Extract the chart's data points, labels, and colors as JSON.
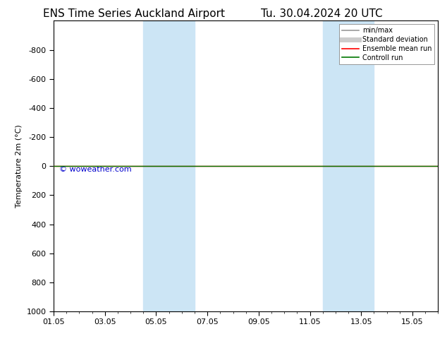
{
  "title": "ENS Time Series Auckland Airport",
  "title_right": "Tu. 30.04.2024 20 UTC",
  "ylabel": "Temperature 2m (°C)",
  "watermark": "© woweather.com",
  "watermark_color": "#0000cc",
  "bg_color": "#ffffff",
  "plot_bg_color": "#ffffff",
  "ylim_bottom": 1000,
  "ylim_top": -1000,
  "yticks": [
    -800,
    -600,
    -400,
    -200,
    0,
    200,
    400,
    600,
    800,
    1000
  ],
  "xlim_start": 0.0,
  "xlim_end": 15.0,
  "xtick_labels": [
    "01.05",
    "03.05",
    "05.05",
    "07.05",
    "09.05",
    "11.05",
    "13.05",
    "15.05"
  ],
  "xtick_positions": [
    0,
    2,
    4,
    6,
    8,
    10,
    12,
    14
  ],
  "shade_bands": [
    {
      "x_start": 3.5,
      "x_end": 5.5,
      "color": "#cce5f5",
      "alpha": 1.0
    },
    {
      "x_start": 10.5,
      "x_end": 12.5,
      "color": "#cce5f5",
      "alpha": 1.0
    }
  ],
  "hline_color_red": "#ff0000",
  "hline_color_green": "#007700",
  "legend_items": [
    {
      "label": "min/max",
      "color": "#999999",
      "lw": 1.2
    },
    {
      "label": "Standard deviation",
      "color": "#cccccc",
      "lw": 5.0
    },
    {
      "label": "Ensemble mean run",
      "color": "#ff0000",
      "lw": 1.2
    },
    {
      "label": "Controll run",
      "color": "#007700",
      "lw": 1.2
    }
  ],
  "title_fontsize": 11,
  "axis_fontsize": 8,
  "tick_fontsize": 8
}
